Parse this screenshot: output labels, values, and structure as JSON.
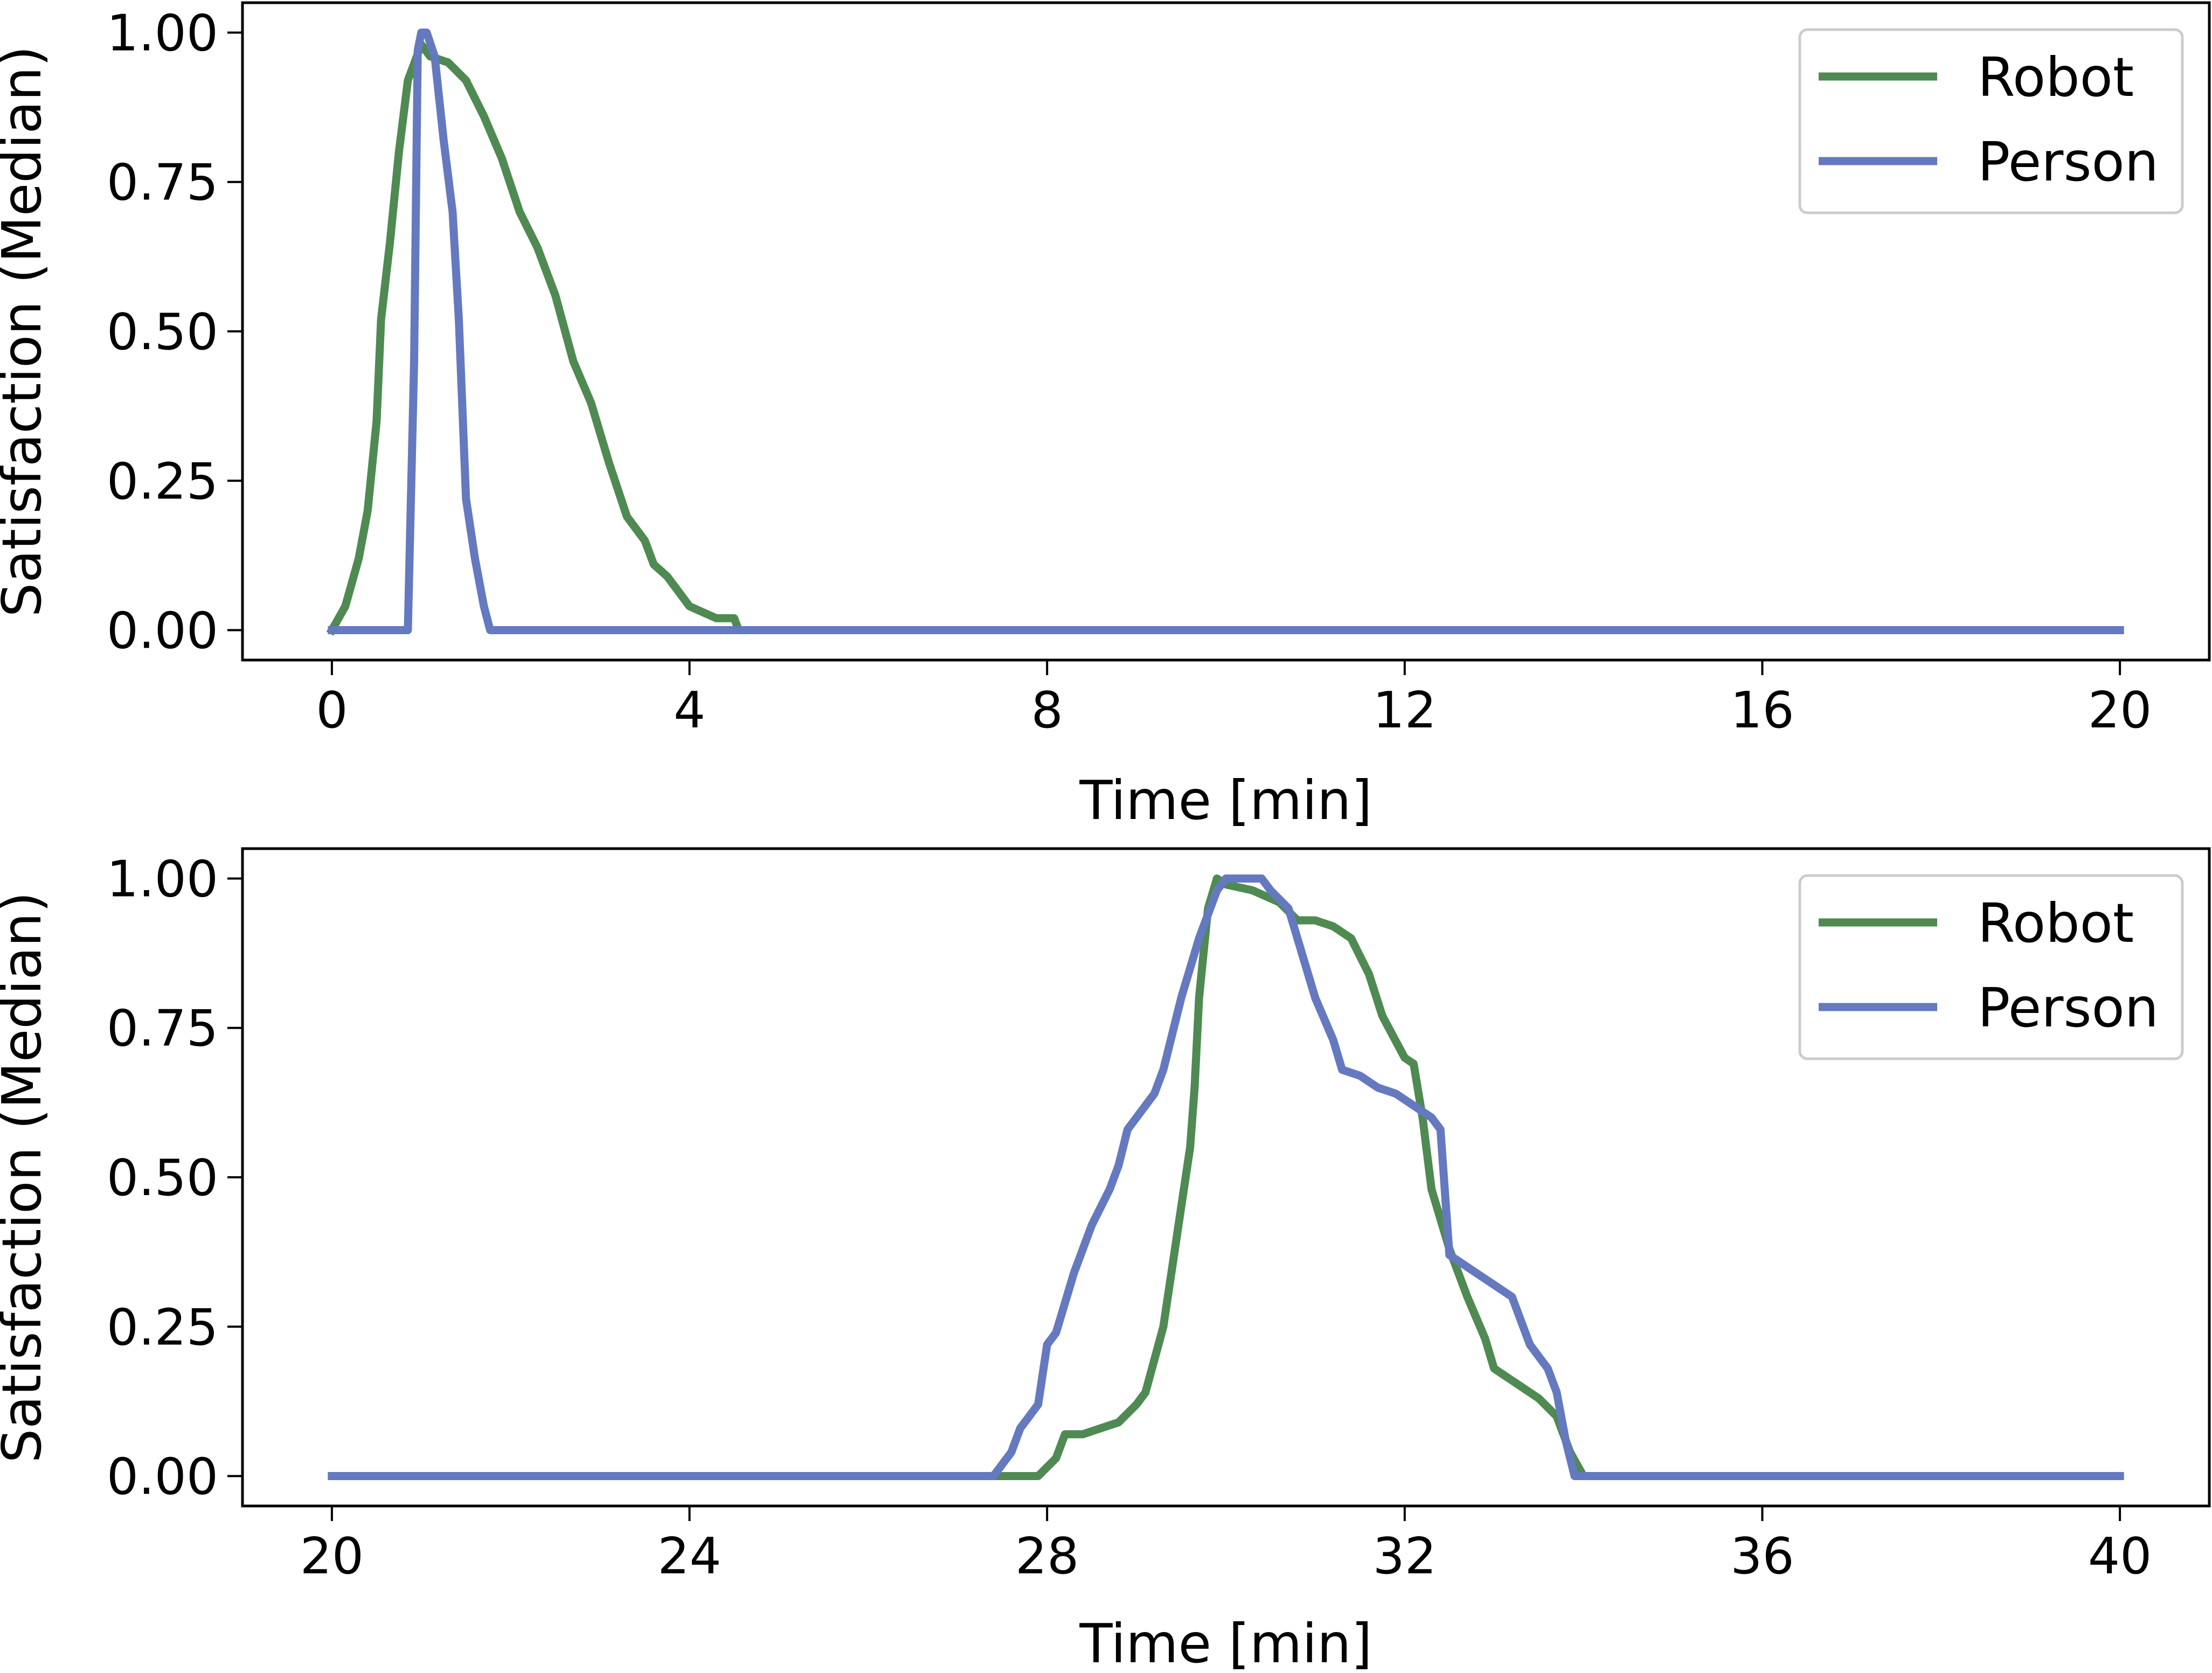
{
  "colors": {
    "robot": "#4f8a52",
    "person": "#6479bf",
    "axis": "#000000",
    "legend_border": "#cccccc",
    "background": "#ffffff"
  },
  "chart_data": [
    {
      "type": "line",
      "xlabel": "Time [min]",
      "ylabel": "Satisfaction (Median)",
      "xlim": [
        -1,
        21
      ],
      "ylim": [
        -0.05,
        1.05
      ],
      "xticks": [
        0,
        4,
        8,
        12,
        16,
        20
      ],
      "xtick_labels": [
        "0",
        "4",
        "8",
        "12",
        "16",
        "20"
      ],
      "yticks": [
        0,
        0.25,
        0.5,
        0.75,
        1
      ],
      "ytick_labels": [
        "0.00",
        "0.25",
        "0.50",
        "0.75",
        "1.00"
      ],
      "legend": {
        "placement": "top-right",
        "entries": [
          "Robot",
          "Person"
        ]
      },
      "series": [
        {
          "name": "Robot",
          "color_key": "robot",
          "points": [
            [
              0,
              0
            ],
            [
              0.15,
              0.04
            ],
            [
              0.3,
              0.12
            ],
            [
              0.4,
              0.2
            ],
            [
              0.5,
              0.35
            ],
            [
              0.55,
              0.52
            ],
            [
              0.65,
              0.65
            ],
            [
              0.75,
              0.8
            ],
            [
              0.85,
              0.92
            ],
            [
              1.0,
              0.98
            ],
            [
              1.1,
              0.96
            ],
            [
              1.3,
              0.95
            ],
            [
              1.5,
              0.92
            ],
            [
              1.7,
              0.86
            ],
            [
              1.9,
              0.79
            ],
            [
              2.1,
              0.7
            ],
            [
              2.3,
              0.64
            ],
            [
              2.5,
              0.56
            ],
            [
              2.7,
              0.45
            ],
            [
              2.9,
              0.38
            ],
            [
              3.1,
              0.28
            ],
            [
              3.3,
              0.19
            ],
            [
              3.5,
              0.15
            ],
            [
              3.6,
              0.11
            ],
            [
              3.75,
              0.09
            ],
            [
              3.9,
              0.06
            ],
            [
              4.0,
              0.04
            ],
            [
              4.15,
              0.03
            ],
            [
              4.3,
              0.02
            ],
            [
              4.5,
              0.02
            ],
            [
              4.55,
              0.0
            ],
            [
              20,
              0
            ]
          ]
        },
        {
          "name": "Person",
          "color_key": "person",
          "points": [
            [
              0,
              0
            ],
            [
              0.85,
              0
            ],
            [
              0.92,
              0.45
            ],
            [
              0.96,
              0.97
            ],
            [
              1.0,
              1.0
            ],
            [
              1.06,
              1.0
            ],
            [
              1.15,
              0.96
            ],
            [
              1.25,
              0.82
            ],
            [
              1.35,
              0.7
            ],
            [
              1.42,
              0.52
            ],
            [
              1.5,
              0.22
            ],
            [
              1.6,
              0.12
            ],
            [
              1.7,
              0.04
            ],
            [
              1.77,
              0.0
            ],
            [
              20,
              0
            ]
          ]
        }
      ]
    },
    {
      "type": "line",
      "xlabel": "Time [min]",
      "ylabel": "Satisfaction (Median)",
      "xlim": [
        19,
        41
      ],
      "ylim": [
        -0.05,
        1.05
      ],
      "xticks": [
        20,
        24,
        28,
        32,
        36,
        40
      ],
      "xtick_labels": [
        "20",
        "24",
        "28",
        "32",
        "36",
        "40"
      ],
      "yticks": [
        0,
        0.25,
        0.5,
        0.75,
        1
      ],
      "ytick_labels": [
        "0.00",
        "0.25",
        "0.50",
        "0.75",
        "1.00"
      ],
      "legend": {
        "placement": "top-right",
        "entries": [
          "Robot",
          "Person"
        ]
      },
      "series": [
        {
          "name": "Robot",
          "color_key": "robot",
          "points": [
            [
              20,
              0
            ],
            [
              27.9,
              0
            ],
            [
              28.1,
              0.03
            ],
            [
              28.2,
              0.07
            ],
            [
              28.4,
              0.07
            ],
            [
              28.6,
              0.08
            ],
            [
              28.8,
              0.09
            ],
            [
              29.0,
              0.12
            ],
            [
              29.1,
              0.14
            ],
            [
              29.3,
              0.25
            ],
            [
              29.4,
              0.35
            ],
            [
              29.5,
              0.45
            ],
            [
              29.6,
              0.55
            ],
            [
              29.65,
              0.65
            ],
            [
              29.7,
              0.8
            ],
            [
              29.8,
              0.95
            ],
            [
              29.9,
              1.0
            ],
            [
              30.0,
              0.99
            ],
            [
              30.3,
              0.98
            ],
            [
              30.6,
              0.96
            ],
            [
              30.8,
              0.93
            ],
            [
              31.0,
              0.93
            ],
            [
              31.2,
              0.92
            ],
            [
              31.4,
              0.9
            ],
            [
              31.6,
              0.84
            ],
            [
              31.75,
              0.77
            ],
            [
              32.0,
              0.7
            ],
            [
              32.1,
              0.69
            ],
            [
              32.2,
              0.6
            ],
            [
              32.3,
              0.48
            ],
            [
              32.5,
              0.38
            ],
            [
              32.7,
              0.3
            ],
            [
              32.9,
              0.23
            ],
            [
              33.0,
              0.18
            ],
            [
              33.5,
              0.13
            ],
            [
              33.7,
              0.1
            ],
            [
              33.85,
              0.04
            ],
            [
              34.0,
              0.0
            ],
            [
              40,
              0
            ]
          ]
        },
        {
          "name": "Person",
          "color_key": "person",
          "points": [
            [
              20,
              0
            ],
            [
              27.4,
              0
            ],
            [
              27.6,
              0.04
            ],
            [
              27.7,
              0.08
            ],
            [
              27.9,
              0.12
            ],
            [
              28.0,
              0.22
            ],
            [
              28.1,
              0.24
            ],
            [
              28.3,
              0.34
            ],
            [
              28.5,
              0.42
            ],
            [
              28.7,
              0.48
            ],
            [
              28.8,
              0.52
            ],
            [
              28.9,
              0.58
            ],
            [
              29.2,
              0.64
            ],
            [
              29.3,
              0.68
            ],
            [
              29.4,
              0.74
            ],
            [
              29.5,
              0.8
            ],
            [
              29.6,
              0.85
            ],
            [
              29.7,
              0.9
            ],
            [
              29.8,
              0.94
            ],
            [
              29.9,
              0.98
            ],
            [
              30.0,
              1.0
            ],
            [
              30.4,
              1.0
            ],
            [
              30.5,
              0.98
            ],
            [
              30.7,
              0.95
            ],
            [
              30.8,
              0.9
            ],
            [
              30.9,
              0.85
            ],
            [
              31.0,
              0.8
            ],
            [
              31.2,
              0.73
            ],
            [
              31.3,
              0.68
            ],
            [
              31.5,
              0.67
            ],
            [
              31.7,
              0.65
            ],
            [
              31.9,
              0.64
            ],
            [
              32.1,
              0.62
            ],
            [
              32.3,
              0.6
            ],
            [
              32.4,
              0.58
            ],
            [
              32.5,
              0.37
            ],
            [
              32.8,
              0.34
            ],
            [
              33.0,
              0.32
            ],
            [
              33.2,
              0.3
            ],
            [
              33.4,
              0.22
            ],
            [
              33.6,
              0.18
            ],
            [
              33.7,
              0.14
            ],
            [
              33.8,
              0.06
            ],
            [
              33.9,
              0.0
            ],
            [
              40,
              0
            ]
          ]
        }
      ]
    }
  ]
}
